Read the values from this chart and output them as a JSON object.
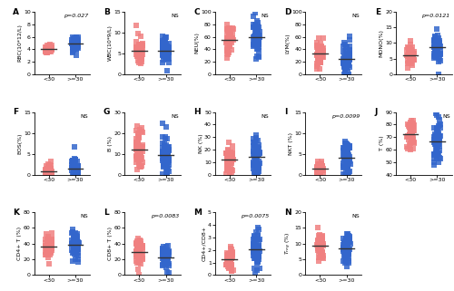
{
  "panels": [
    {
      "label": "A",
      "ylabel": "RBC(10*12/L)",
      "pval": "p=0.027",
      "ylim": [
        0,
        10
      ],
      "yticks": [
        0,
        2,
        4,
        6,
        8,
        10
      ],
      "g1_mean": 4.1,
      "g1_std": 0.35,
      "g1_n": 40,
      "g2_mean": 4.9,
      "g2_std": 0.7,
      "g2_n": 60
    },
    {
      "label": "B",
      "ylabel": "WBC(10*9/L)",
      "pval": "NS",
      "ylim": [
        0,
        15
      ],
      "yticks": [
        0,
        5,
        10,
        15
      ],
      "g1_mean": 5.5,
      "g1_std": 1.6,
      "g1_n": 55,
      "g2_mean": 5.8,
      "g2_std": 1.5,
      "g2_n": 60
    },
    {
      "label": "C",
      "ylabel": "NEU(%)",
      "pval": "NS",
      "ylim": [
        0,
        100
      ],
      "yticks": [
        0,
        20,
        40,
        60,
        80,
        100
      ],
      "g1_mean": 55,
      "g1_std": 12,
      "g1_n": 55,
      "g2_mean": 62,
      "g2_std": 15,
      "g2_n": 65
    },
    {
      "label": "D",
      "ylabel": "LYM(%)",
      "pval": "NS",
      "ylim": [
        0,
        100
      ],
      "yticks": [
        0,
        20,
        40,
        60,
        80,
        100
      ],
      "g1_mean": 32,
      "g1_std": 10,
      "g1_n": 55,
      "g2_mean": 27,
      "g2_std": 13,
      "g2_n": 65
    },
    {
      "label": "E",
      "ylabel": "MONO(%)",
      "pval": "p=0.0121",
      "ylim": [
        0,
        20
      ],
      "yticks": [
        0,
        5,
        10,
        15,
        20
      ],
      "g1_mean": 6.5,
      "g1_std": 1.8,
      "g1_n": 40,
      "g2_mean": 8.5,
      "g2_std": 2.5,
      "g2_n": 60
    },
    {
      "label": "F",
      "ylabel": "EOS(%)",
      "pval": "NS",
      "ylim": [
        0,
        15
      ],
      "yticks": [
        0,
        5,
        10,
        15
      ],
      "g1_mean": 0.5,
      "g1_std": 0.9,
      "g1_n": 55,
      "g2_mean": 1.3,
      "g2_std": 1.8,
      "g2_n": 65
    },
    {
      "label": "G",
      "ylabel": "B (%)",
      "pval": "NS",
      "ylim": [
        0,
        30
      ],
      "yticks": [
        0,
        10,
        20,
        30
      ],
      "g1_mean": 12,
      "g1_std": 5,
      "g1_n": 55,
      "g2_mean": 10,
      "g2_std": 6,
      "g2_n": 65
    },
    {
      "label": "H",
      "ylabel": "NK (%)",
      "pval": "NS",
      "ylim": [
        0,
        50
      ],
      "yticks": [
        0,
        10,
        20,
        30,
        40,
        50
      ],
      "g1_mean": 12,
      "g1_std": 6,
      "g1_n": 55,
      "g2_mean": 14,
      "g2_std": 8,
      "g2_n": 65
    },
    {
      "label": "I",
      "ylabel": "NKT (%)",
      "pval": "p=0.0099",
      "ylim": [
        0,
        15
      ],
      "yticks": [
        0,
        5,
        10,
        15
      ],
      "g1_mean": 1.3,
      "g1_std": 1.0,
      "g1_n": 55,
      "g2_mean": 4.0,
      "g2_std": 2.8,
      "g2_n": 65
    },
    {
      "label": "J",
      "ylabel": "T (%)",
      "pval": "NS",
      "ylim": [
        40,
        90
      ],
      "yticks": [
        40,
        50,
        60,
        70,
        80,
        90
      ],
      "g1_mean": 72,
      "g1_std": 6,
      "g1_n": 40,
      "g2_mean": 68,
      "g2_std": 10,
      "g2_n": 60
    },
    {
      "label": "K",
      "ylabel": "CD4+ T (%)",
      "pval": "NS",
      "ylim": [
        0,
        80
      ],
      "yticks": [
        0,
        20,
        40,
        60,
        80
      ],
      "g1_mean": 37,
      "g1_std": 8,
      "g1_n": 55,
      "g2_mean": 40,
      "g2_std": 9,
      "g2_n": 65
    },
    {
      "label": "L",
      "ylabel": "CD8+ T (%)",
      "pval": "p=0.0083",
      "ylim": [
        0,
        80
      ],
      "yticks": [
        0,
        20,
        40,
        60,
        80
      ],
      "g1_mean": 30,
      "g1_std": 9,
      "g1_n": 55,
      "g2_mean": 22,
      "g2_std": 8,
      "g2_n": 65
    },
    {
      "label": "M",
      "ylabel": "CD4+/CD8+",
      "pval": "p=0.0075",
      "ylim": [
        0,
        5
      ],
      "yticks": [
        0,
        1,
        2,
        3,
        4,
        5
      ],
      "g1_mean": 1.3,
      "g1_std": 0.45,
      "g1_n": 55,
      "g2_mean": 2.1,
      "g2_std": 0.75,
      "g2_n": 65
    },
    {
      "label": "N",
      "ylabel": "T_reg (%)",
      "pval": "NS",
      "ylim": [
        0,
        20
      ],
      "yticks": [
        0,
        5,
        10,
        15,
        20
      ],
      "g1_mean": 8.5,
      "g1_std": 2.2,
      "g1_n": 55,
      "g2_mean": 9.2,
      "g2_std": 2.8,
      "g2_n": 65
    }
  ],
  "color_young": "#F08080",
  "color_old": "#3366CC",
  "xlabel_young": "<30",
  "xlabel_old": ">=30",
  "marker_size": 4,
  "alpha": 0.85,
  "jitter": 0.13,
  "row1": [
    0,
    1,
    2,
    3,
    4
  ],
  "row2": [
    5,
    6,
    7,
    8,
    9
  ],
  "row3": [
    10,
    11,
    12,
    13
  ]
}
